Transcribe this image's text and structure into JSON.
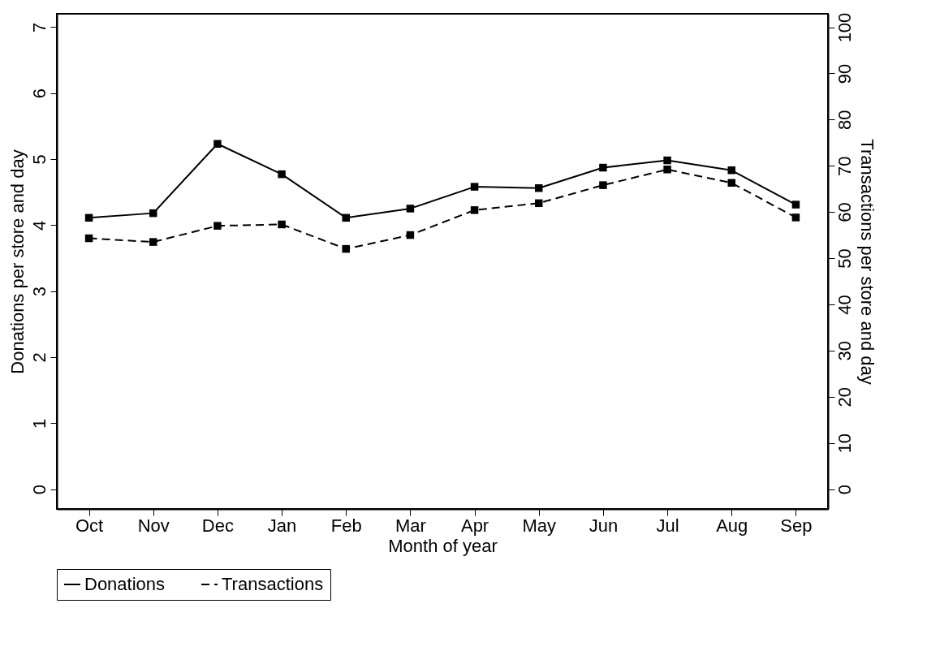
{
  "chart_data": {
    "type": "line",
    "xlabel": "Month of year",
    "ylabel": "Donations per store and day",
    "y2label": "Transactions per store and day",
    "categories": [
      "Oct",
      "Nov",
      "Dec",
      "Jan",
      "Feb",
      "Mar",
      "Apr",
      "May",
      "Jun",
      "Jul",
      "Aug",
      "Sep"
    ],
    "series": [
      {
        "name": "Donations",
        "color": "#000000",
        "line_style": "solid",
        "values": [
          4.11,
          4.18,
          5.23,
          4.77,
          4.11,
          4.25,
          4.58,
          4.56,
          4.87,
          4.98,
          4.83,
          4.31
        ]
      },
      {
        "name": "Transactions",
        "color": "#000000",
        "line_style": "dashed",
        "axis": "y2",
        "values": [
          54.3,
          53.5,
          57.0,
          57.3,
          52.0,
          55.0,
          60.4,
          61.9,
          65.8,
          69.2,
          66.3,
          58.8
        ]
      }
    ],
    "ylim": [
      -0.3,
      7.2
    ],
    "yticks": [
      0,
      1,
      2,
      3,
      4,
      5,
      6,
      7
    ],
    "y2lim": [
      -4.3,
      102.9
    ],
    "y2ticks": [
      0,
      10,
      20,
      30,
      40,
      50,
      60,
      70,
      80,
      90,
      100
    ],
    "marker": "square",
    "grid": false,
    "legend": "bottom"
  }
}
